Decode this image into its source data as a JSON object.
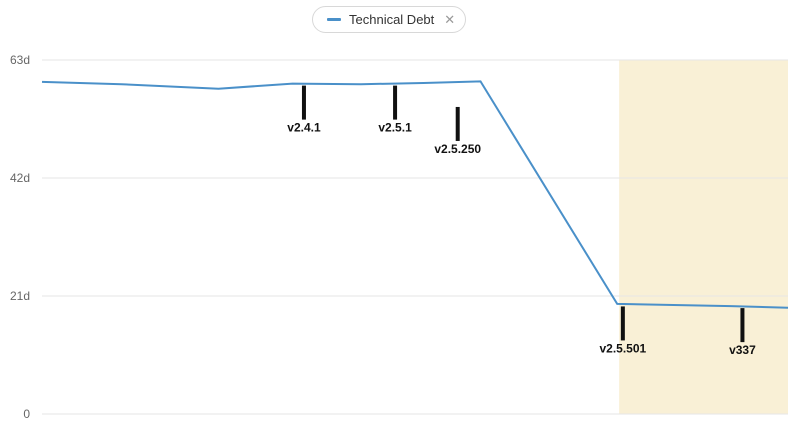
{
  "legend": {
    "series_label": "Technical Debt",
    "close_symbol": "✕"
  },
  "chart_data": {
    "type": "line",
    "title": "",
    "xlabel": "",
    "ylabel": "",
    "ylim": [
      0,
      63
    ],
    "yticks": [
      "0",
      "21d",
      "42d",
      "63d"
    ],
    "ytick_values": [
      0,
      21,
      42,
      63
    ],
    "grid": true,
    "series": [
      {
        "name": "Technical Debt",
        "color": "#4a90c9",
        "values": [
          59.1,
          58.7,
          57.9,
          58.8,
          58.7,
          58.9,
          59.2,
          19.6,
          19.2,
          18.9
        ]
      }
    ],
    "x": [
      0,
      1.4,
      3.1,
      4.4,
      5.6,
      6.7,
      7.7,
      10.1,
      12.1,
      13.1
    ],
    "xlim": [
      0,
      13.1
    ],
    "highlight_range": [
      10.1,
      13.1
    ],
    "highlight_color": "#f9f0d6",
    "releases": [
      {
        "label": "v2.4.1",
        "x": 4.6,
        "value": 58.8
      },
      {
        "label": "v2.5.1",
        "x": 6.2,
        "value": 58.8
      },
      {
        "label": "v2.5.250",
        "x": 7.3,
        "value": 55.0
      },
      {
        "label": "v2.5.501",
        "x": 10.2,
        "value": 19.5
      },
      {
        "label": "v337",
        "x": 12.3,
        "value": 19.2
      }
    ]
  }
}
